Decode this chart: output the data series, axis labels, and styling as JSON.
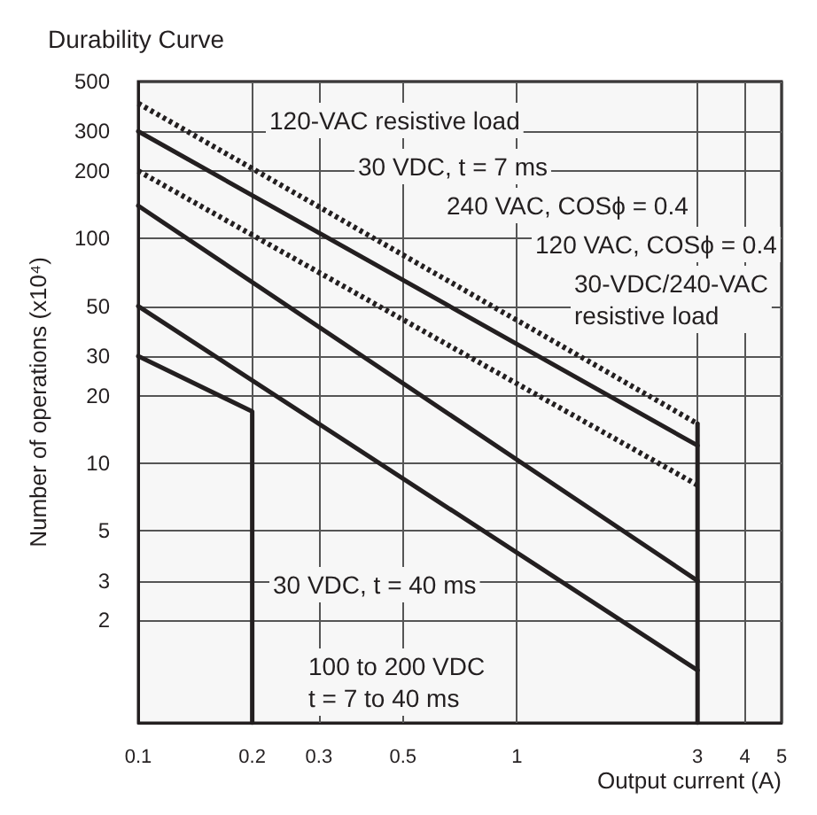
{
  "chart_data": {
    "type": "line",
    "title": "Durability Curve",
    "xlabel": "Output current (A)",
    "ylabel": "Number of operations (x10⁴)",
    "log": "xy",
    "grid": true,
    "xlim": [
      0.1,
      5
    ],
    "ylim": [
      0.7,
      500
    ],
    "xticks": [
      0.1,
      0.2,
      0.3,
      0.5,
      1,
      3,
      4,
      5
    ],
    "yticks": [
      2,
      3,
      5,
      10,
      20,
      30,
      50,
      100,
      200,
      300,
      500
    ],
    "series": [
      {
        "x": [
          0.1,
          3
        ],
        "values": [
          400,
          15
        ],
        "color": "#231f20",
        "line_style": "dotted"
      },
      {
        "x": [
          0.1,
          3
        ],
        "values": [
          300,
          12
        ],
        "color": "#231f20",
        "line_style": "solid"
      },
      {
        "x": [
          0.1,
          3
        ],
        "values": [
          200,
          8
        ],
        "color": "#231f20",
        "line_style": "dotted"
      },
      {
        "x": [
          0.1,
          3
        ],
        "values": [
          140,
          3
        ],
        "color": "#231f20",
        "line_style": "solid"
      },
      {
        "x": [
          0.1,
          3
        ],
        "values": [
          50,
          1.2
        ],
        "color": "#231f20",
        "line_style": "solid"
      },
      {
        "x": [
          0.1,
          0.2,
          0.2
        ],
        "values": [
          30,
          17,
          0.7
        ],
        "color": "#231f20",
        "line_style": "solid"
      },
      {
        "x": [
          3,
          3
        ],
        "values": [
          15,
          0.7
        ],
        "color": "#231f20",
        "line_style": "solid"
      }
    ],
    "annotations": [
      "120-VAC resistive load",
      "30 VDC, t = 7 ms",
      "240 VAC, COSϕ = 0.4",
      "120 VAC, COSϕ = 0.4",
      "30-VDC/240-VAC\nresistive load",
      "30 VDC, t = 40 ms",
      "100 to 200 VDC\nt = 7 to 40 ms"
    ]
  }
}
